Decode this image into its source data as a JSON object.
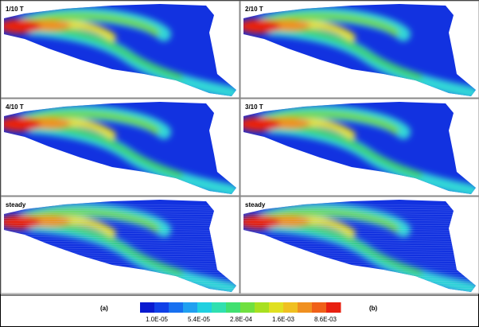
{
  "panels": [
    {
      "label": "1/10 T"
    },
    {
      "label": "2/10 T"
    },
    {
      "label": "4/10 T"
    },
    {
      "label": "3/10 T"
    },
    {
      "label": "steady"
    },
    {
      "label": "steady"
    }
  ],
  "captions": [
    "(a)",
    "(b)"
  ],
  "colorbar": {
    "labels": [
      "1.0E-05",
      "5.4E-05",
      "2.8E-04",
      "1.6E-03",
      "8.6E-03"
    ]
  }
}
